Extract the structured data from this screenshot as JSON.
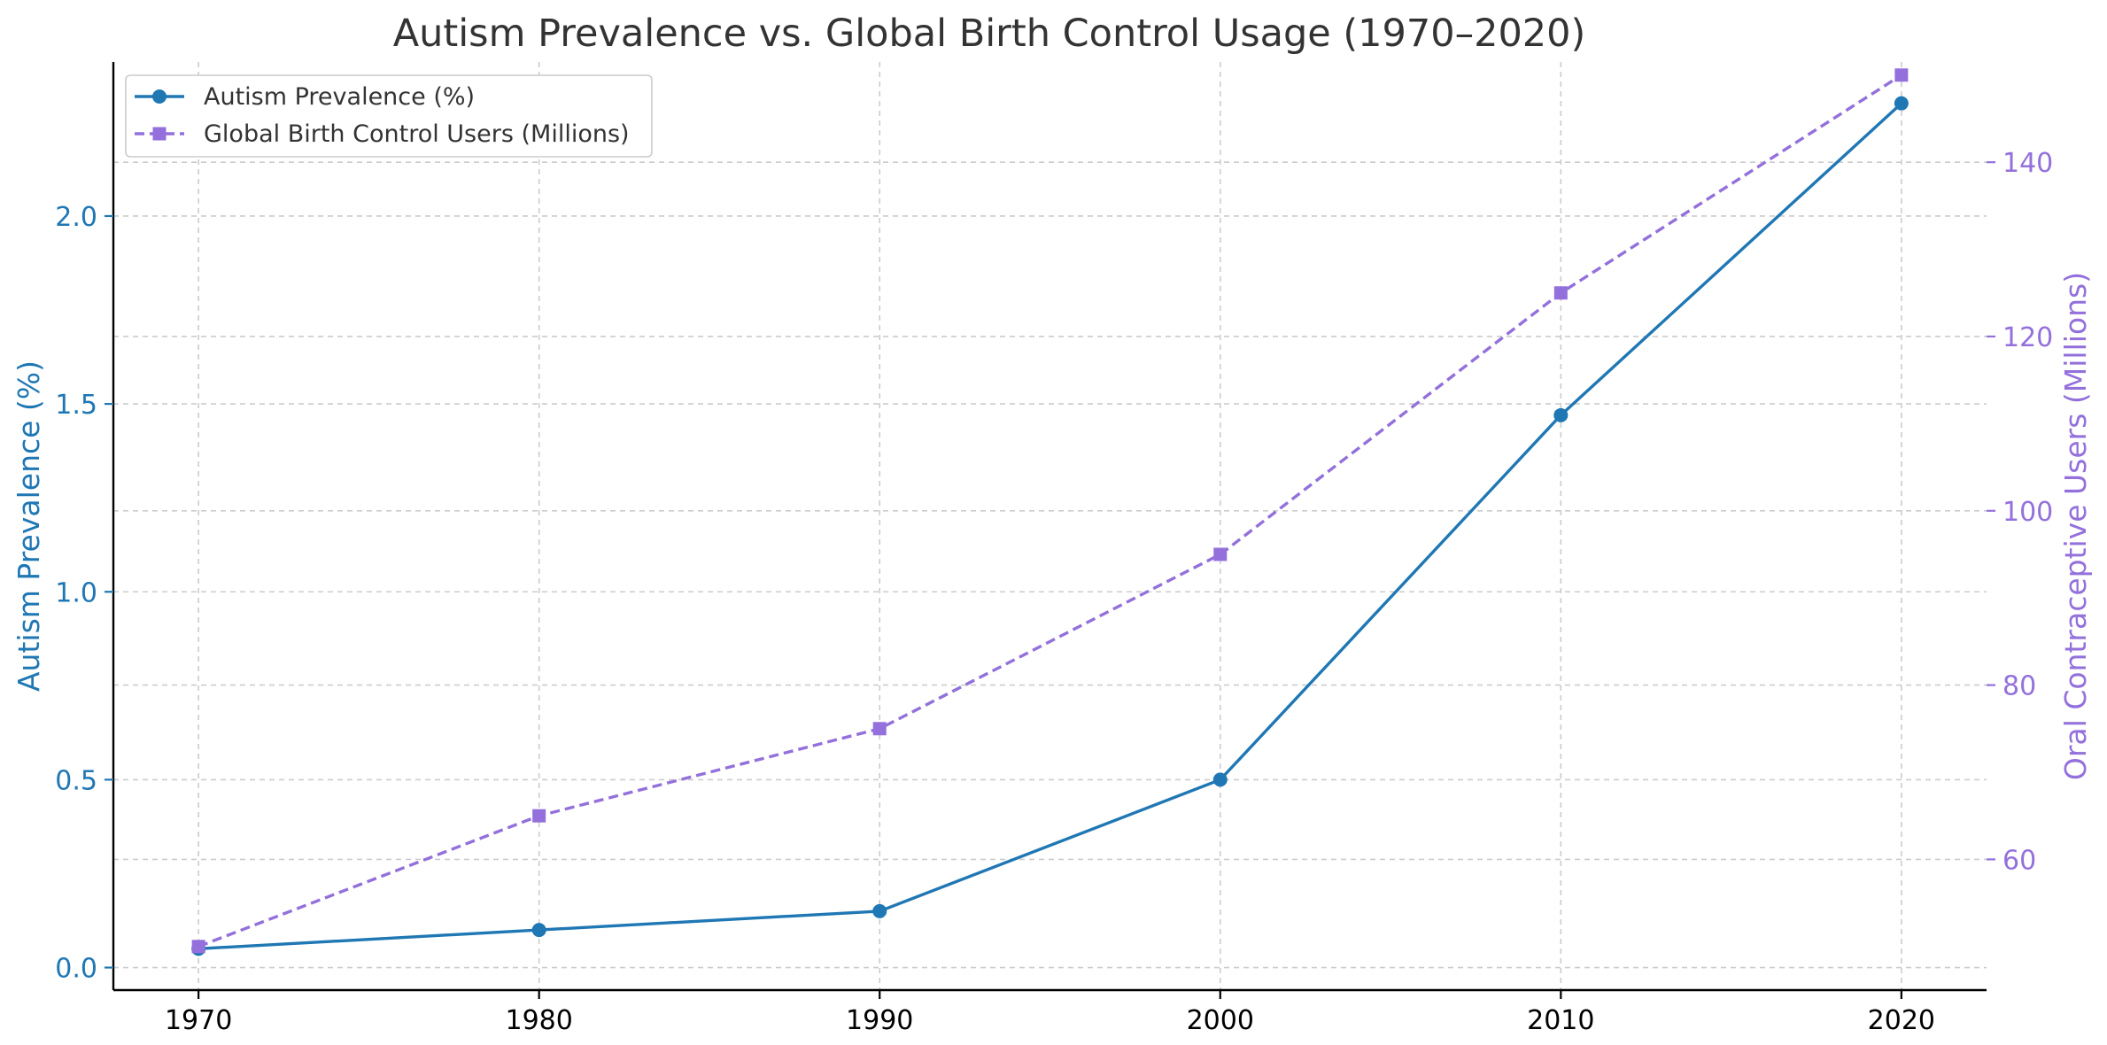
{
  "chart_data": {
    "type": "line",
    "title": "Autism Prevalence vs. Global Birth Control Usage (1970–2020)",
    "x": [
      1970,
      1980,
      1990,
      2000,
      2010,
      2020
    ],
    "x_ticks": [
      "1970",
      "1980",
      "1990",
      "2000",
      "2010",
      "2020"
    ],
    "xlim": [
      1967.5,
      2022.5
    ],
    "grid": true,
    "legend_placement": "upper-left",
    "left_axis": {
      "label": "Autism Prevalence (%)",
      "ticks": [
        "0.0",
        "0.5",
        "1.0",
        "1.5",
        "2.0"
      ],
      "tick_values": [
        0,
        0.5,
        1.0,
        1.5,
        2.0
      ],
      "ylim": [
        -0.06,
        2.41
      ],
      "color": "#1f77b4"
    },
    "right_axis": {
      "label": "Oral Contraceptive Users (Millions)",
      "ticks": [
        "60",
        "80",
        "100",
        "120",
        "140"
      ],
      "tick_values": [
        60,
        80,
        100,
        120,
        140
      ],
      "ylim": [
        45,
        151.5
      ],
      "color": "#9370db"
    },
    "series": [
      {
        "name": "Autism Prevalence (%)",
        "axis": "left",
        "values": [
          0.05,
          0.1,
          0.15,
          0.5,
          1.47,
          2.3
        ],
        "color": "#1f77b4",
        "marker": "circle",
        "line_style": "solid"
      },
      {
        "name": "Global Birth Control Users (Millions)",
        "axis": "right",
        "values": [
          50,
          65,
          75,
          95,
          125,
          150
        ],
        "color": "#9370db",
        "marker": "square",
        "line_style": "dashed"
      }
    ]
  }
}
